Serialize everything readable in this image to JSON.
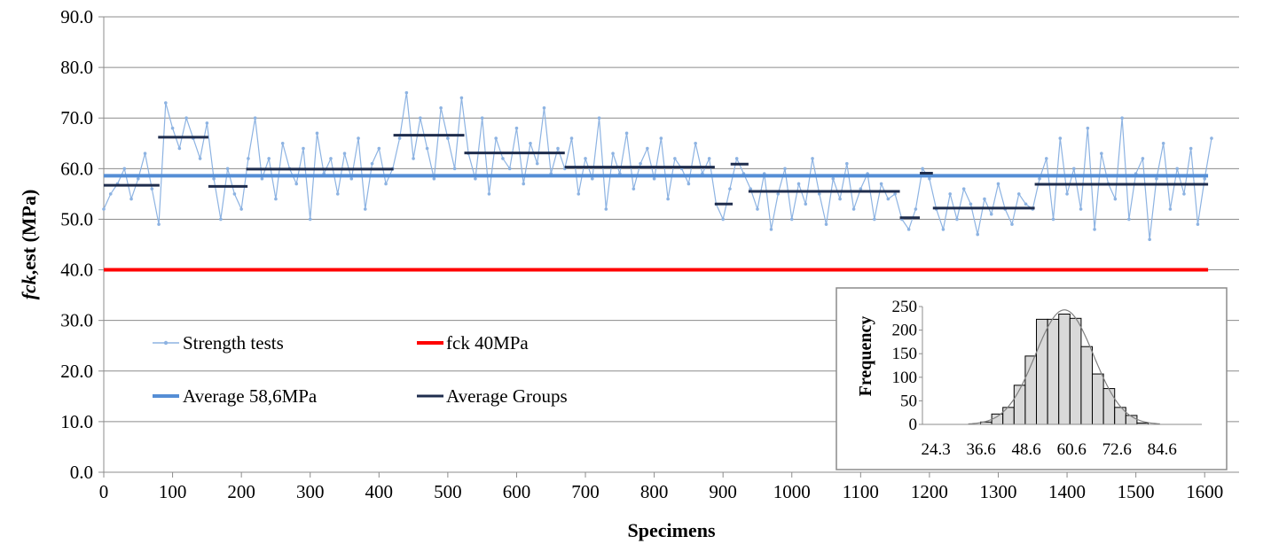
{
  "chart_data": [
    {
      "type": "line",
      "xlabel": "Specimens",
      "ylabel_italic": "fck",
      "ylabel_rest": ",est (MPa)",
      "xlim": [
        0,
        1650
      ],
      "ylim": [
        0,
        90
      ],
      "x_ticks": [
        0,
        100,
        200,
        300,
        400,
        500,
        600,
        700,
        800,
        900,
        1000,
        1100,
        1200,
        1300,
        1400,
        1500,
        1600
      ],
      "y_ticks": [
        "0.0",
        "10.0",
        "20.0",
        "30.0",
        "40.0",
        "50.0",
        "60.0",
        "70.0",
        "80.0",
        "90.0"
      ],
      "grid": "horizontal",
      "legend_position": "bottom-left inside plot",
      "colors": {
        "strength": "#8db3e2",
        "average": "#558ed5",
        "groups": "#1f2d4d",
        "fck": "#ff0000",
        "grid": "#8c8c8c"
      },
      "series": [
        {
          "name": "Strength tests",
          "x_step": 10,
          "values": [
            52,
            55,
            57,
            60,
            54,
            58,
            63,
            56,
            49,
            73,
            68,
            64,
            70,
            66,
            62,
            69,
            58,
            50,
            60,
            55,
            52,
            62,
            70,
            58,
            62,
            54,
            65,
            60,
            57,
            64,
            50,
            67,
            59,
            62,
            55,
            63,
            58,
            66,
            52,
            61,
            64,
            57,
            60,
            66,
            75,
            62,
            70,
            64,
            58,
            72,
            66,
            60,
            74,
            63,
            58,
            70,
            55,
            66,
            62,
            60,
            68,
            57,
            65,
            61,
            72,
            59,
            64,
            60,
            66,
            55,
            62,
            58,
            70,
            52,
            63,
            59,
            67,
            56,
            61,
            64,
            58,
            66,
            54,
            62,
            60,
            57,
            65,
            59,
            62,
            53,
            50,
            56,
            62,
            59,
            56,
            52,
            59,
            48,
            55,
            60,
            50,
            57,
            53,
            62,
            55,
            49,
            58,
            54,
            61,
            52,
            56,
            59,
            50,
            57,
            54,
            55,
            50,
            48,
            52,
            60,
            58,
            52,
            48,
            55,
            50,
            56,
            53,
            47,
            54,
            51,
            57,
            52,
            49,
            55,
            53,
            52,
            58,
            62,
            50,
            66,
            55,
            60,
            52,
            68,
            48,
            63,
            57,
            54,
            70,
            50,
            59,
            62,
            46,
            58,
            65,
            52,
            60,
            55,
            64,
            49,
            58,
            66
          ]
        },
        {
          "name": "fck 40MPa",
          "value": 40,
          "x_range": [
            0,
            1605
          ]
        },
        {
          "name": "Average 58,6MPa",
          "value": 58.6,
          "x_range": [
            0,
            1605
          ]
        },
        {
          "name": "Average Groups",
          "segments": [
            {
              "from": 0,
              "to": 81,
              "value": 56.7
            },
            {
              "from": 79,
              "to": 152,
              "value": 66.2
            },
            {
              "from": 152,
              "to": 209,
              "value": 56.5
            },
            {
              "from": 207,
              "to": 421,
              "value": 59.9
            },
            {
              "from": 421,
              "to": 524,
              "value": 66.6
            },
            {
              "from": 524,
              "to": 670,
              "value": 63.1
            },
            {
              "from": 670,
              "to": 888,
              "value": 60.3
            },
            {
              "from": 888,
              "to": 914,
              "value": 53.0
            },
            {
              "from": 911,
              "to": 937,
              "value": 60.9
            },
            {
              "from": 937,
              "to": 1157,
              "value": 55.5
            },
            {
              "from": 1157,
              "to": 1186,
              "value": 50.3
            },
            {
              "from": 1186,
              "to": 1205,
              "value": 59.1
            },
            {
              "from": 1205,
              "to": 1353,
              "value": 52.2
            },
            {
              "from": 1353,
              "to": 1605,
              "value": 56.9
            }
          ]
        }
      ]
    },
    {
      "type": "bar",
      "ylabel": "Frequency",
      "ylim": [
        0,
        250
      ],
      "y_ticks": [
        "0",
        "50",
        "100",
        "150",
        "200",
        "250"
      ],
      "x_tick_labels": [
        "24.3",
        "36.6",
        "48.6",
        "60.6",
        "72.6",
        "84.6"
      ],
      "bin_count": 25,
      "first_bar_bin": 5,
      "values": [
        5,
        22,
        36,
        83,
        145,
        223,
        223,
        234,
        225,
        165,
        107,
        76,
        36,
        19,
        3
      ],
      "fit": {
        "type": "normal",
        "mean": 60.6,
        "peak": 243
      },
      "colors": {
        "bar": "#d9d9d9",
        "curve": "#808080"
      }
    }
  ]
}
